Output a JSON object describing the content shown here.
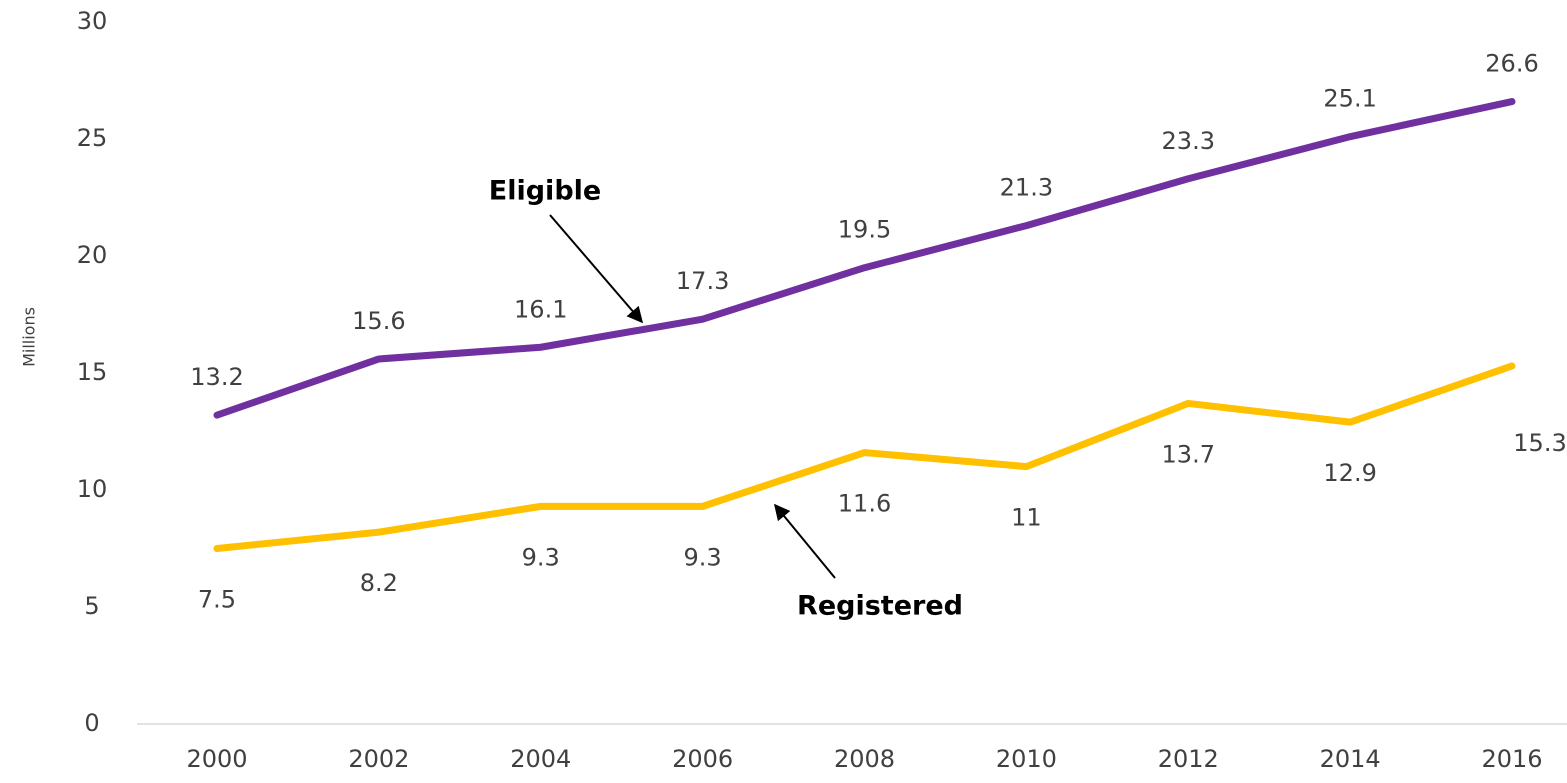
{
  "chart_data": {
    "type": "line",
    "y_label": "Millions",
    "categories": [
      "2000",
      "2002",
      "2004",
      "2006",
      "2008",
      "2010",
      "2012",
      "2014",
      "2016"
    ],
    "series": [
      {
        "name": "Eligible",
        "color": "#7030a0",
        "values": [
          13.2,
          15.6,
          16.1,
          17.3,
          19.5,
          21.3,
          23.3,
          25.1,
          26.6
        ]
      },
      {
        "name": "Registered",
        "color": "#ffc000",
        "values": [
          7.5,
          8.2,
          9.3,
          9.3,
          11.6,
          11,
          13.7,
          12.9,
          15.3
        ]
      }
    ],
    "annotations": [
      {
        "text": "Eligible"
      },
      {
        "text": "Registered"
      }
    ],
    "ylim": [
      0,
      30
    ],
    "yticks": [
      0,
      5,
      10,
      15,
      20,
      25,
      30
    ],
    "grid": false
  }
}
